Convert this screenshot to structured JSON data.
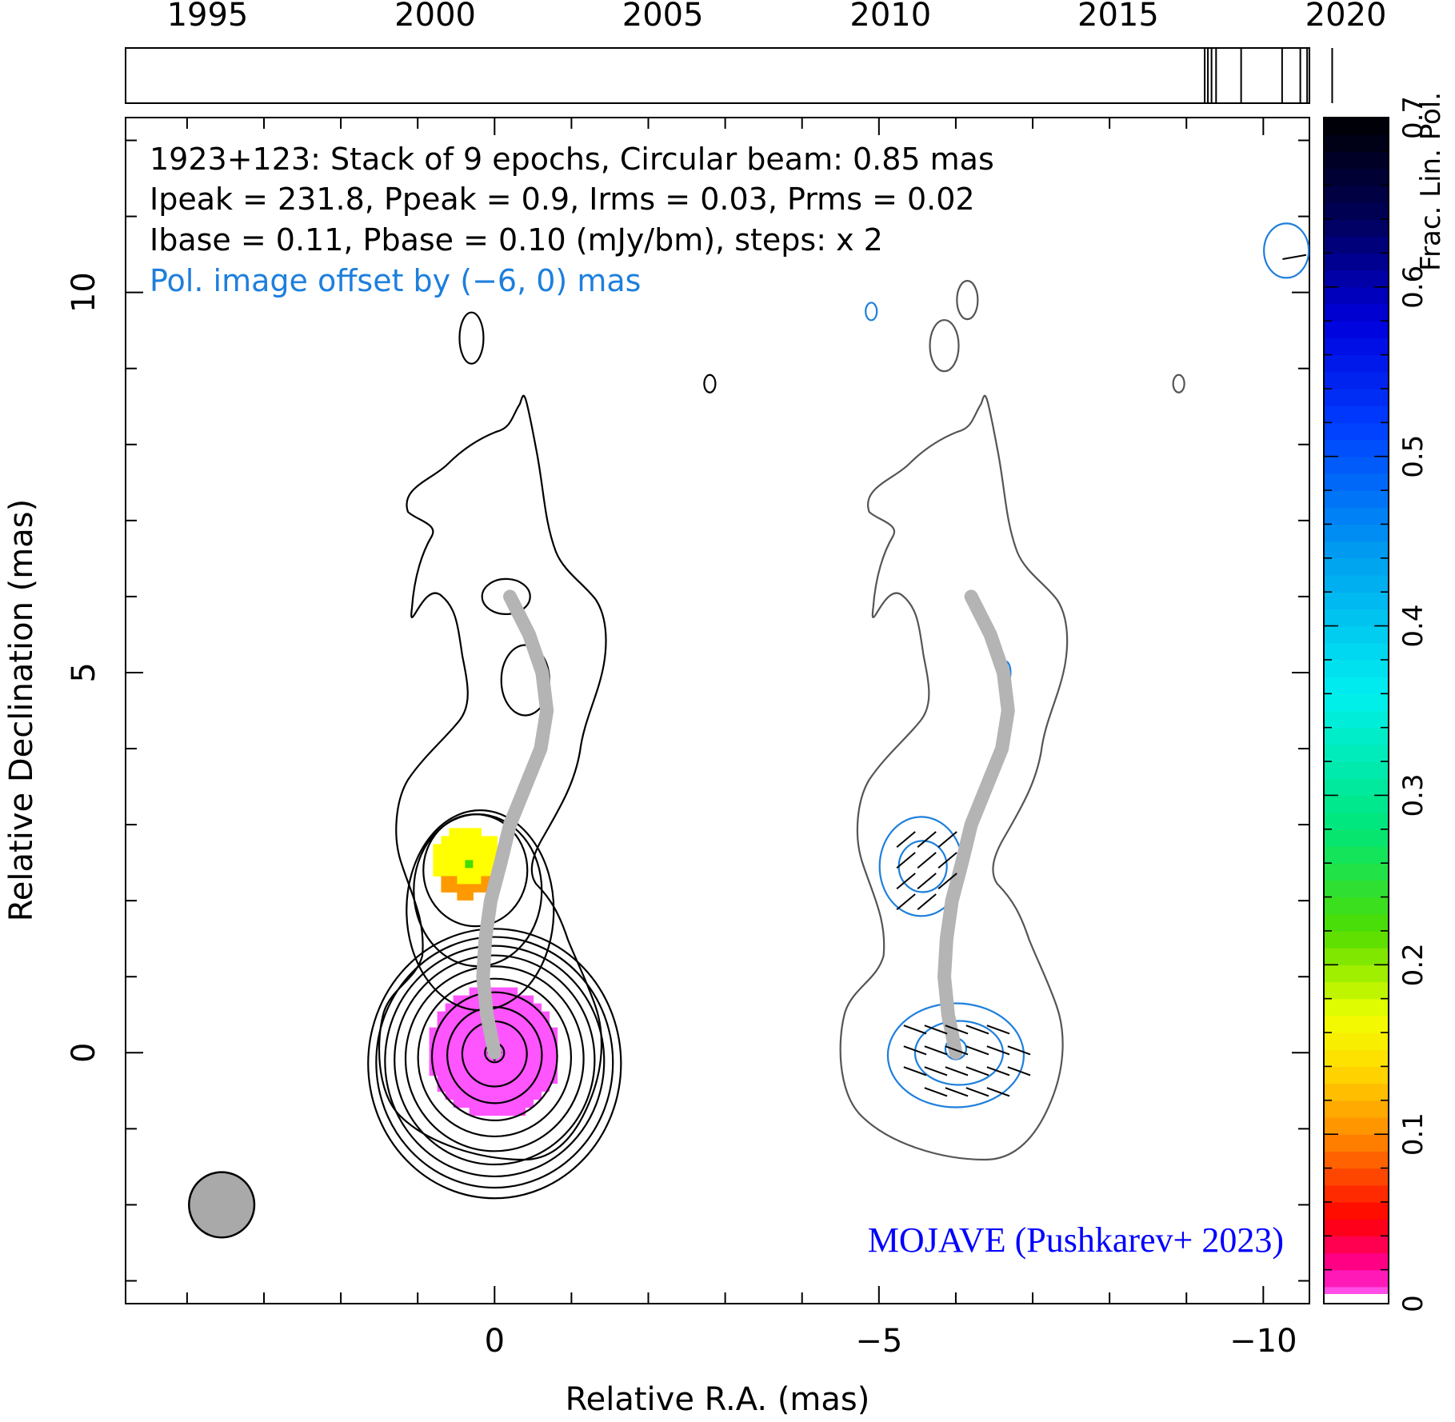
{
  "chart_data": {
    "type": "contour",
    "title": "1923+123: Stack of 9 epochs, Circular beam: 0.85 mas",
    "info_lines": [
      "1923+123: Stack of 9 epochs, Circular beam: 0.85 mas",
      "Ipeak = 231.8, Ppeak = 0.9, Irms = 0.03, Prms = 0.02",
      "Ibase = 0.11, Pbase = 0.10 (mJy/bm), steps: x 2"
    ],
    "pol_offset_note": "Pol. image offset by (−6, 0) mas",
    "credit": "MOJAVE (Pushkarev+ 2023)",
    "xlabel": "Relative R.A. (mas)",
    "ylabel": "Relative Declination (mas)",
    "xlim": [
      4.8,
      -10.6
    ],
    "ylim": [
      -3.3,
      12.3
    ],
    "x_ticks": [
      0,
      -5,
      -10
    ],
    "x_tick_labels": [
      "0",
      "−5",
      "−10"
    ],
    "y_ticks": [
      0,
      5,
      10
    ],
    "y_tick_labels": [
      "0",
      "5",
      "10"
    ],
    "timeline": {
      "range": [
        1993.2,
        2019.2
      ],
      "ticks": [
        1995,
        2000,
        2005,
        2010,
        2015,
        2020
      ],
      "tick_labels": [
        "1995",
        "2000",
        "2005",
        "2010",
        "2015",
        "2020"
      ],
      "epochs": [
        2016.9,
        2016.97,
        2017.05,
        2017.15,
        2017.7,
        2018.6,
        2019.0,
        2019.15,
        2019.7
      ]
    },
    "colorbar": {
      "label": "Frac. Lin. Pol.",
      "range": [
        0,
        0.7
      ],
      "ticks": [
        0,
        0.1,
        0.2,
        0.3,
        0.4,
        0.5,
        0.6,
        0.7
      ],
      "tick_labels": [
        "0",
        "0.1",
        "0.2",
        "0.3",
        "0.4",
        "0.5",
        "0.6",
        "0.7"
      ]
    },
    "beam_diameter_mas": 0.85,
    "ridgeline": [
      [
        -0.2,
        6.0
      ],
      [
        -0.45,
        5.5
      ],
      [
        -0.62,
        5.0
      ],
      [
        -0.68,
        4.5
      ],
      [
        -0.6,
        4.0
      ],
      [
        -0.4,
        3.5
      ],
      [
        -0.2,
        3.0
      ],
      [
        -0.08,
        2.5
      ],
      [
        0.05,
        2.0
      ],
      [
        0.12,
        1.5
      ],
      [
        0.15,
        1.0
      ],
      [
        0.1,
        0.5
      ],
      [
        0.0,
        0.0
      ]
    ],
    "fractional_pol_patches": [
      {
        "center": [
          0.35,
          2.5
        ],
        "radius": 0.45,
        "value": 0.17
      },
      {
        "center": [
          0.0,
          0.0
        ],
        "radius": 0.85,
        "value": 0.01
      }
    ],
    "evpa_regions": [
      {
        "center": [
          -5.55,
          2.5
        ],
        "angle_deg": 40
      },
      {
        "center": [
          -6.0,
          0.0
        ],
        "angle_deg": -20
      }
    ],
    "colors": {
      "i_contour": "#000000",
      "i_contour_offset": "#555555",
      "pol_contour": "#1e7fdc",
      "ridgeline": "#b4b4b4",
      "pol_text": "#1e7fdc",
      "credit": "#0000ff"
    }
  }
}
